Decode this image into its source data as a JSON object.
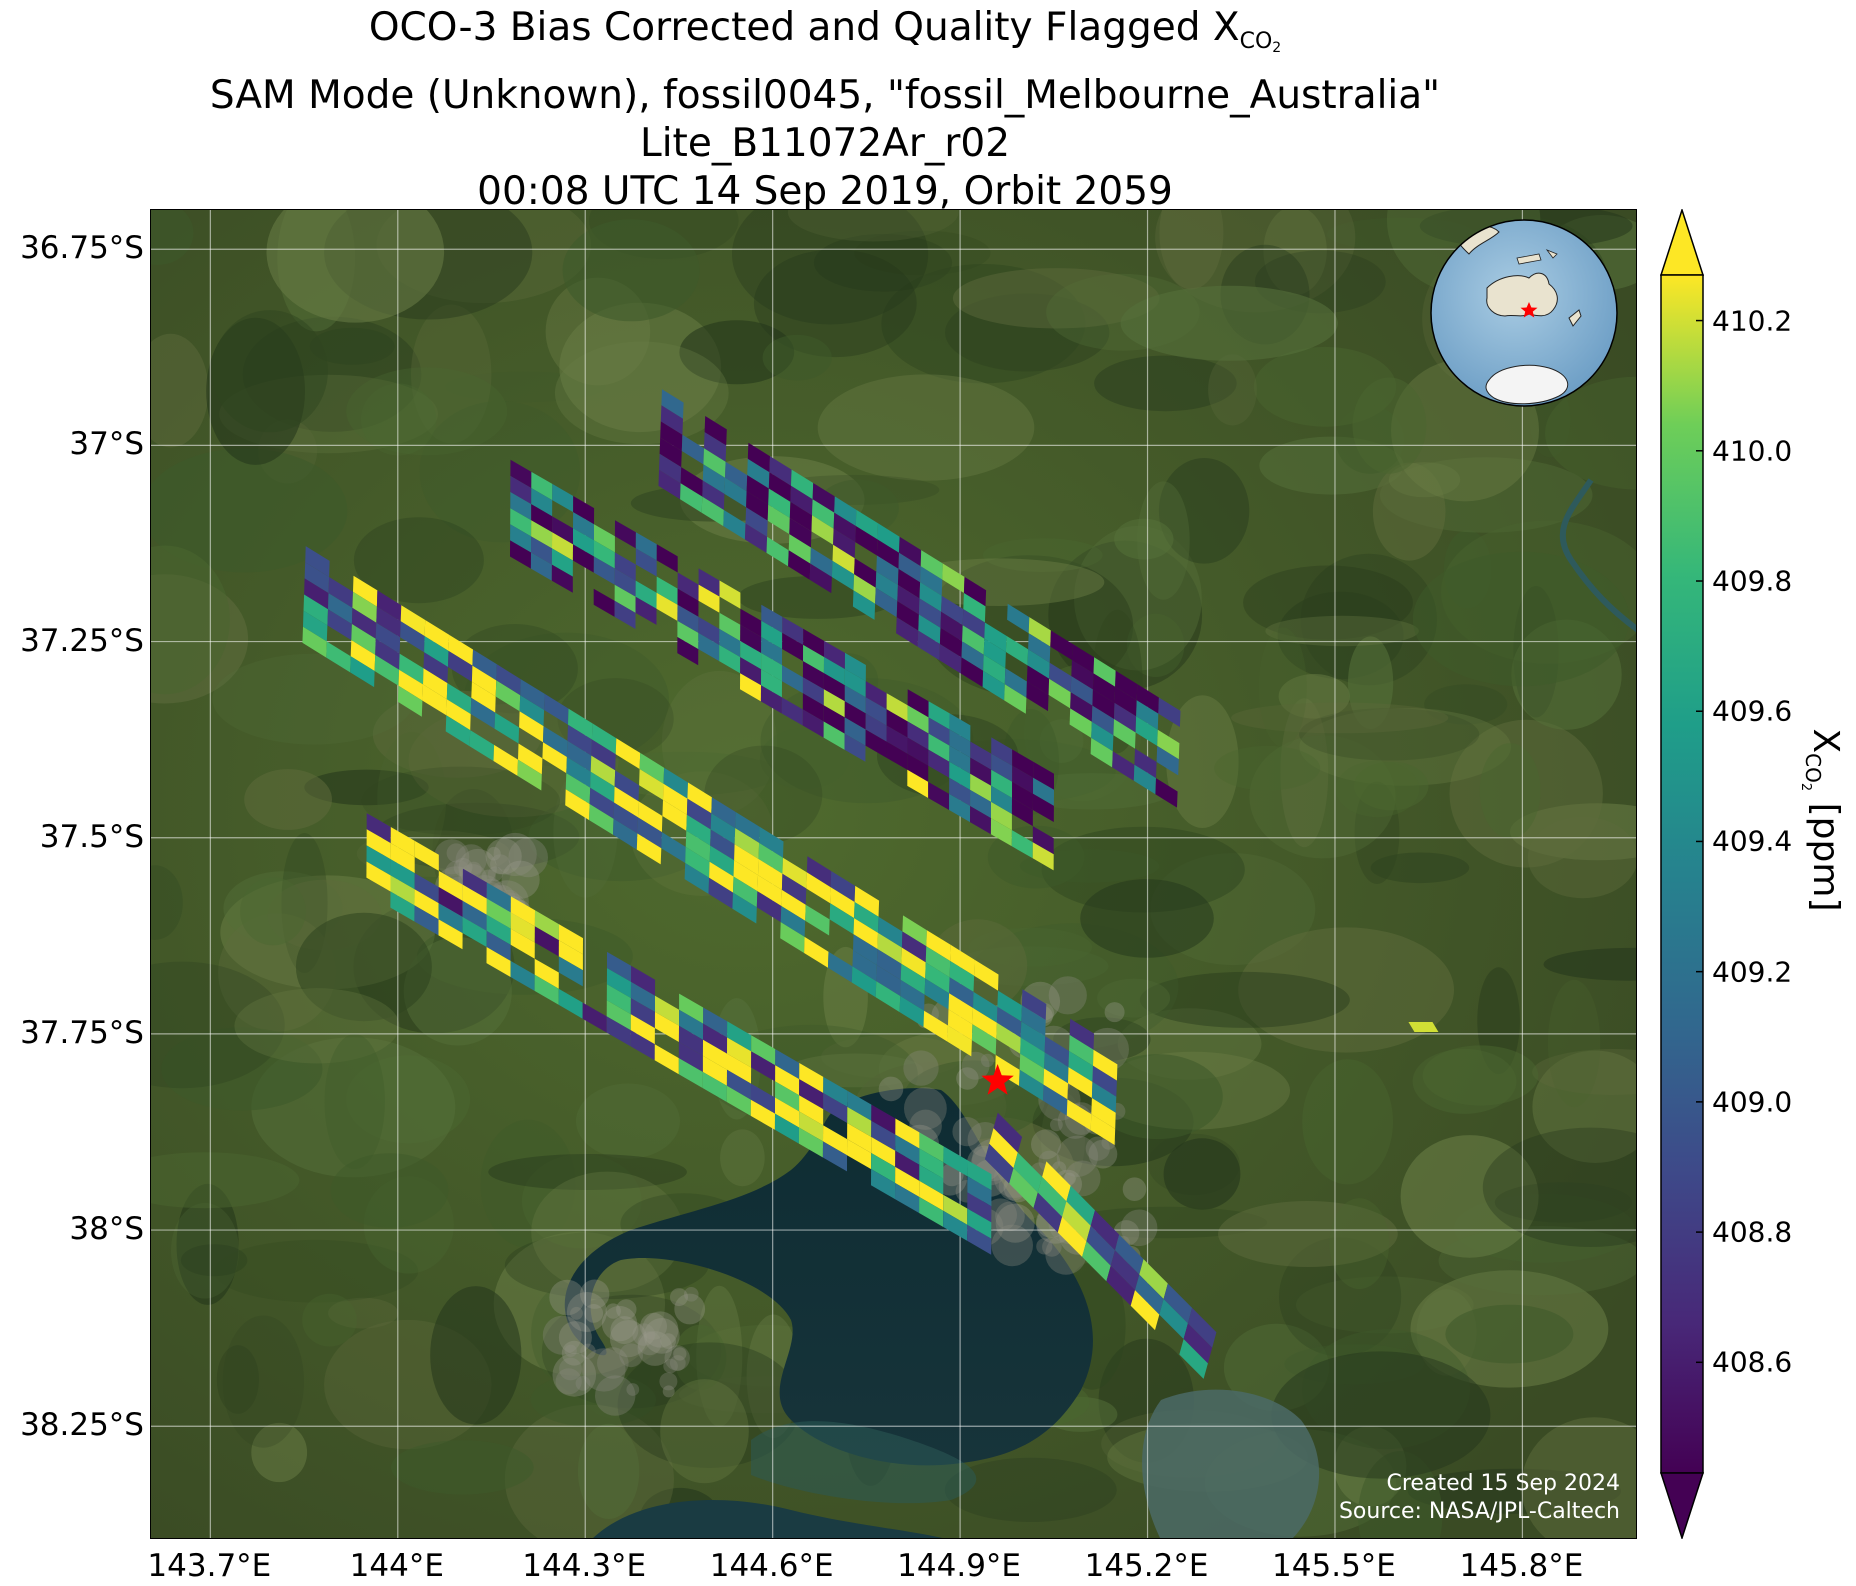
{
  "title": {
    "line1_prefix": "OCO-3 Bias Corrected and Quality Flagged X",
    "line1_subscript": "CO",
    "line1_subsub": "2",
    "line2": "SAM Mode (Unknown), fossil0045, \"fossil_Melbourne_Australia\"",
    "line3": "Lite_B11072Ar_r02",
    "line4": "00:08 UTC 14 Sep 2019, Orbit 2059"
  },
  "map": {
    "lon_labels": [
      "143.7°E",
      "144°E",
      "144.3°E",
      "144.6°E",
      "144.9°E",
      "145.2°E",
      "145.5°E",
      "145.8°E"
    ],
    "lat_labels": [
      "36.75°S",
      "37°S",
      "37.25°S",
      "37.5°S",
      "37.75°S",
      "38°S",
      "38.25°S"
    ],
    "lon_ticks": [
      143.7,
      144.0,
      144.3,
      144.6,
      144.9,
      145.2,
      145.5,
      145.8
    ],
    "lat_ticks": [
      -36.75,
      -37.0,
      -37.25,
      -37.5,
      -37.75,
      -38.0,
      -38.25
    ],
    "lon_range": [
      143.605,
      145.985
    ],
    "lat_range": [
      -38.395,
      -36.7
    ],
    "grid": true,
    "target_marker": {
      "name": "fossil_Melbourne_Australia",
      "lon": 144.96,
      "lat": -37.81,
      "color": "#ff0000",
      "icon": "star-icon"
    },
    "credit_line1": "Created 15 Sep 2024",
    "credit_line2": "Source: NASA/JPL-Caltech",
    "inset_icon": "globe-icon"
  },
  "colorbar": {
    "label_prefix": "X",
    "label_sub": "CO",
    "label_subsub": "2",
    "label_suffix": " [ppm]",
    "ticks": [
      "408.6",
      "408.8",
      "409.0",
      "409.2",
      "409.4",
      "409.6",
      "409.8",
      "410.0",
      "410.2"
    ],
    "min": 408.43,
    "max": 410.27,
    "colormap": "viridis",
    "extend": "both"
  },
  "chart_data": {
    "type": "heatmap",
    "variable": "XCO2",
    "units": "ppm",
    "swaths": [
      {
        "lon_start": 143.85,
        "lat_start": -37.19,
        "lon_end": 145.15,
        "lat_end": -37.83,
        "rows": 6,
        "cols": 34,
        "mean": 409.7
      },
      {
        "lon_start": 143.95,
        "lat_start": -37.52,
        "lon_end": 144.95,
        "lat_end": -37.98,
        "rows": 5,
        "cols": 26,
        "mean": 409.6
      },
      {
        "lon_start": 144.18,
        "lat_start": -37.08,
        "lon_end": 145.05,
        "lat_end": -37.48,
        "rows": 6,
        "cols": 26,
        "mean": 409.2
      },
      {
        "lon_start": 144.42,
        "lat_start": -36.99,
        "lon_end": 145.25,
        "lat_end": -37.4,
        "rows": 6,
        "cols": 24,
        "mean": 409.1
      },
      {
        "lon_start": 144.95,
        "lat_start": -37.88,
        "lon_end": 145.3,
        "lat_end": -38.16,
        "rows": 3,
        "cols": 9,
        "mean": 409.5
      }
    ],
    "extra_pixels": [
      {
        "lon": 145.64,
        "lat": -37.74,
        "value": 410.2
      }
    ]
  }
}
